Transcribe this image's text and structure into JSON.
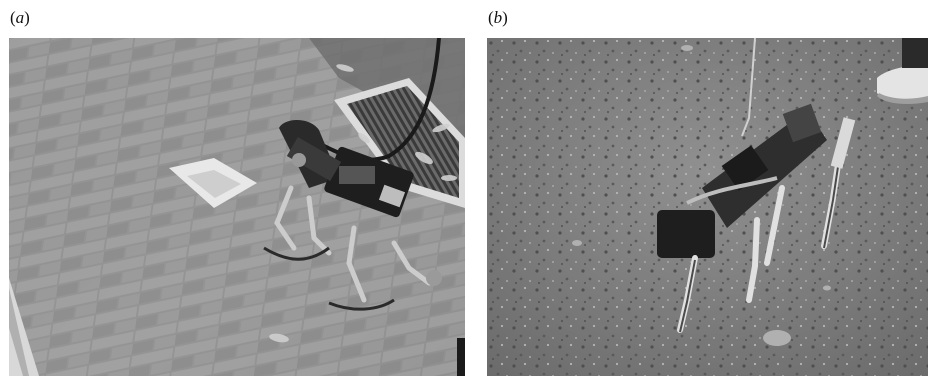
{
  "panels": [
    {
      "label_open": "(",
      "label_letter": "a",
      "label_close": ")"
    },
    {
      "label_open": "(",
      "label_letter": "b",
      "label_close": ")"
    }
  ],
  "colors": {
    "pavement_light": "#9a9a9a",
    "pavement_dark": "#5e5e5e",
    "dirt_light": "#8c8c8c",
    "dirt_dark": "#5a5a5a",
    "robot_dark": "#1e1e1e",
    "robot_metal": "#c8c8c8"
  }
}
